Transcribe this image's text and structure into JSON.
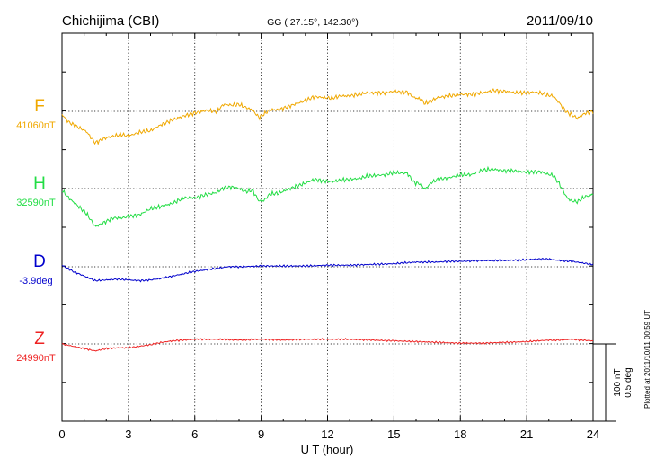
{
  "header": {
    "station": "Chichijima (CBI)",
    "coords": "GG ( 27.15°, 142.30°)",
    "date": "2011/09/10"
  },
  "scale": {
    "nt_label": "100 nT",
    "deg_label": "0.5 deg"
  },
  "plotted_note": "Plotted at 2011/10/11 00:59 UT",
  "chart_data": {
    "type": "line",
    "xlabel": "U T (hour)",
    "ylabel": "",
    "xlim": [
      0,
      24
    ],
    "xticks": [
      "0",
      "3",
      "6",
      "9",
      "12",
      "15",
      "18",
      "21",
      "24"
    ],
    "grid": true,
    "series": [
      {
        "name": "F",
        "baseline_label": "41060nT",
        "color": "#f0a800",
        "unit": "nT",
        "baseline": 41060,
        "x": [
          0,
          0.3,
          0.7,
          1.1,
          1.5,
          1.9,
          2.3,
          2.7,
          3.0,
          3.5,
          4.0,
          4.5,
          5.0,
          5.5,
          6.0,
          6.5,
          7.0,
          7.3,
          7.7,
          8.0,
          8.3,
          8.6,
          8.9,
          9.1,
          9.4,
          9.8,
          10.2,
          10.6,
          11.0,
          11.4,
          11.8,
          12.2,
          12.6,
          13.0,
          13.4,
          13.8,
          14.2,
          14.6,
          15.0,
          15.3,
          15.6,
          15.9,
          16.2,
          16.4,
          16.7,
          17.0,
          17.5,
          18.0,
          18.5,
          19.0,
          19.5,
          20.0,
          20.5,
          21.0,
          21.3,
          21.6,
          21.9,
          22.2,
          22.5,
          22.8,
          23.0,
          23.3,
          23.6,
          24.0
        ],
        "values": [
          -4,
          -14,
          -20,
          -26,
          -41,
          -35,
          -32,
          -30,
          -32,
          -27,
          -25,
          -17,
          -11,
          -6,
          -2,
          1,
          0,
          9,
          8,
          9,
          5,
          2,
          -8,
          -4,
          2,
          2,
          6,
          10,
          14,
          19,
          18,
          17,
          20,
          20,
          22,
          24,
          24,
          24,
          26,
          25,
          25,
          18,
          16,
          10,
          14,
          18,
          20,
          22,
          22,
          24,
          27,
          26,
          24,
          24,
          25,
          24,
          21,
          20,
          10,
          -1,
          -4,
          -9,
          -3,
          0
        ]
      },
      {
        "name": "H",
        "baseline_label": "32590nT",
        "color": "#22dd44",
        "unit": "nT",
        "baseline": 32590,
        "x": [
          0,
          0.3,
          0.7,
          1.1,
          1.5,
          1.9,
          2.3,
          2.7,
          3.0,
          3.5,
          4.0,
          4.5,
          5.0,
          5.5,
          6.0,
          6.5,
          7.0,
          7.3,
          7.7,
          8.0,
          8.3,
          8.6,
          8.9,
          9.1,
          9.4,
          9.8,
          10.2,
          10.6,
          11.0,
          11.4,
          11.8,
          12.2,
          12.6,
          13.0,
          13.4,
          13.8,
          14.2,
          14.6,
          15.0,
          15.3,
          15.6,
          15.9,
          16.2,
          16.4,
          16.7,
          17.0,
          17.5,
          18.0,
          18.5,
          19.0,
          19.5,
          20.0,
          20.5,
          21.0,
          21.3,
          21.6,
          21.9,
          22.2,
          22.5,
          22.8,
          23.0,
          23.3,
          23.6,
          24.0
        ],
        "values": [
          -2,
          -12,
          -22,
          -32,
          -49,
          -44,
          -38,
          -38,
          -36,
          -34,
          -26,
          -23,
          -19,
          -12,
          -12,
          -8,
          -5,
          1,
          2,
          0,
          -4,
          -2,
          -16,
          -16,
          -7,
          -6,
          -1,
          3,
          7,
          12,
          10,
          9,
          11,
          12,
          13,
          16,
          17,
          18,
          21,
          20,
          20,
          8,
          6,
          -1,
          8,
          12,
          14,
          18,
          18,
          24,
          25,
          23,
          23,
          21,
          22,
          22,
          19,
          17,
          5,
          -11,
          -16,
          -17,
          -11,
          -7
        ]
      },
      {
        "name": "D",
        "baseline_label": "-3.9deg",
        "color": "#0000cc",
        "unit": "deg",
        "baseline": -3.9,
        "x": [
          0,
          0.5,
          1.0,
          1.5,
          2.0,
          2.5,
          3.0,
          3.5,
          4.0,
          4.5,
          5.0,
          5.5,
          6.0,
          6.5,
          7.0,
          7.5,
          8.0,
          9.0,
          10.0,
          11.0,
          12.0,
          13.0,
          14.0,
          15.0,
          15.5,
          16.0,
          16.5,
          17.0,
          17.5,
          18.0,
          19.0,
          20.0,
          21.0,
          21.5,
          22.0,
          22.5,
          23.0,
          23.5,
          24.0
        ],
        "values": [
          0.01,
          -0.03,
          -0.06,
          -0.09,
          -0.085,
          -0.08,
          -0.085,
          -0.09,
          -0.085,
          -0.075,
          -0.06,
          -0.045,
          -0.03,
          -0.02,
          -0.01,
          0,
          0,
          0.005,
          0.005,
          0.005,
          0.01,
          0.01,
          0.015,
          0.02,
          0.025,
          0.03,
          0.03,
          0.03,
          0.035,
          0.035,
          0.04,
          0.04,
          0.045,
          0.05,
          0.05,
          0.04,
          0.035,
          0.025,
          0.015
        ]
      },
      {
        "name": "Z",
        "baseline_label": "24990nT",
        "color": "#ee2222",
        "unit": "nT",
        "baseline": 24990,
        "x": [
          0,
          0.5,
          1.0,
          1.5,
          2.0,
          2.5,
          3.0,
          3.5,
          4.0,
          4.5,
          5.0,
          5.5,
          6.0,
          7.0,
          8.0,
          9.0,
          10.0,
          11.0,
          12.0,
          13.0,
          14.0,
          15.0,
          16.0,
          17.0,
          18.0,
          19.0,
          20.0,
          21.0,
          22.0,
          22.5,
          23.0,
          23.5,
          24.0
        ],
        "values": [
          0,
          -3,
          -6,
          -9,
          -6,
          -5,
          -5,
          -3,
          -1,
          2,
          4,
          5,
          6,
          6,
          5,
          6,
          5,
          6,
          6,
          6,
          5,
          4,
          3,
          2,
          1,
          1,
          2,
          3,
          5,
          5,
          6,
          5,
          4
        ]
      }
    ]
  }
}
